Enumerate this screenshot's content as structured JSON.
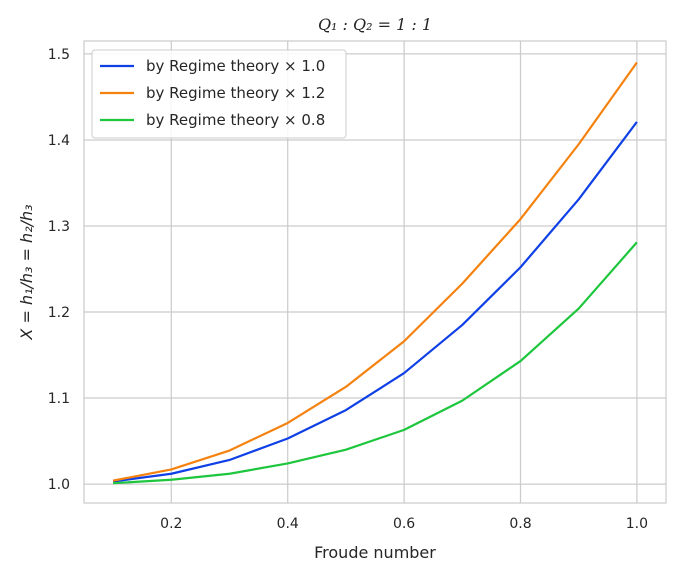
{
  "chart_data": {
    "type": "line",
    "title": "Q₁ : Q₂ = 1 : 1",
    "xlabel": "Froude number",
    "ylabel": "X = h₁/h₃ = h₂/h₃",
    "xlim": [
      0.05,
      1.05
    ],
    "ylim": [
      0.978,
      1.515
    ],
    "xticks": [
      0.2,
      0.4,
      0.6,
      0.8,
      1.0
    ],
    "xtick_labels": [
      "0.2",
      "0.4",
      "0.6",
      "0.8",
      "1.0"
    ],
    "yticks": [
      1.0,
      1.1,
      1.2,
      1.3,
      1.4,
      1.5
    ],
    "ytick_labels": [
      "1.0",
      "1.1",
      "1.2",
      "1.3",
      "1.4",
      "1.5"
    ],
    "grid": true,
    "legend_position": "top-left",
    "x": [
      0.1,
      0.2,
      0.3,
      0.4,
      0.5,
      0.6,
      0.7,
      0.8,
      0.9,
      1.0
    ],
    "series": [
      {
        "name": "by Regime theory × 1.0",
        "color": "#0f40e6",
        "values": [
          1.003,
          1.012,
          1.028,
          1.053,
          1.086,
          1.129,
          1.185,
          1.252,
          1.331,
          1.421
        ]
      },
      {
        "name": "by Regime theory × 1.2",
        "color": "#f5820f",
        "values": [
          1.004,
          1.017,
          1.039,
          1.071,
          1.113,
          1.166,
          1.233,
          1.308,
          1.395,
          1.49
        ]
      },
      {
        "name": "by Regime theory × 0.8",
        "color": "#1dc63c",
        "values": [
          1.001,
          1.005,
          1.012,
          1.024,
          1.04,
          1.063,
          1.097,
          1.143,
          1.204,
          1.281
        ]
      }
    ]
  }
}
